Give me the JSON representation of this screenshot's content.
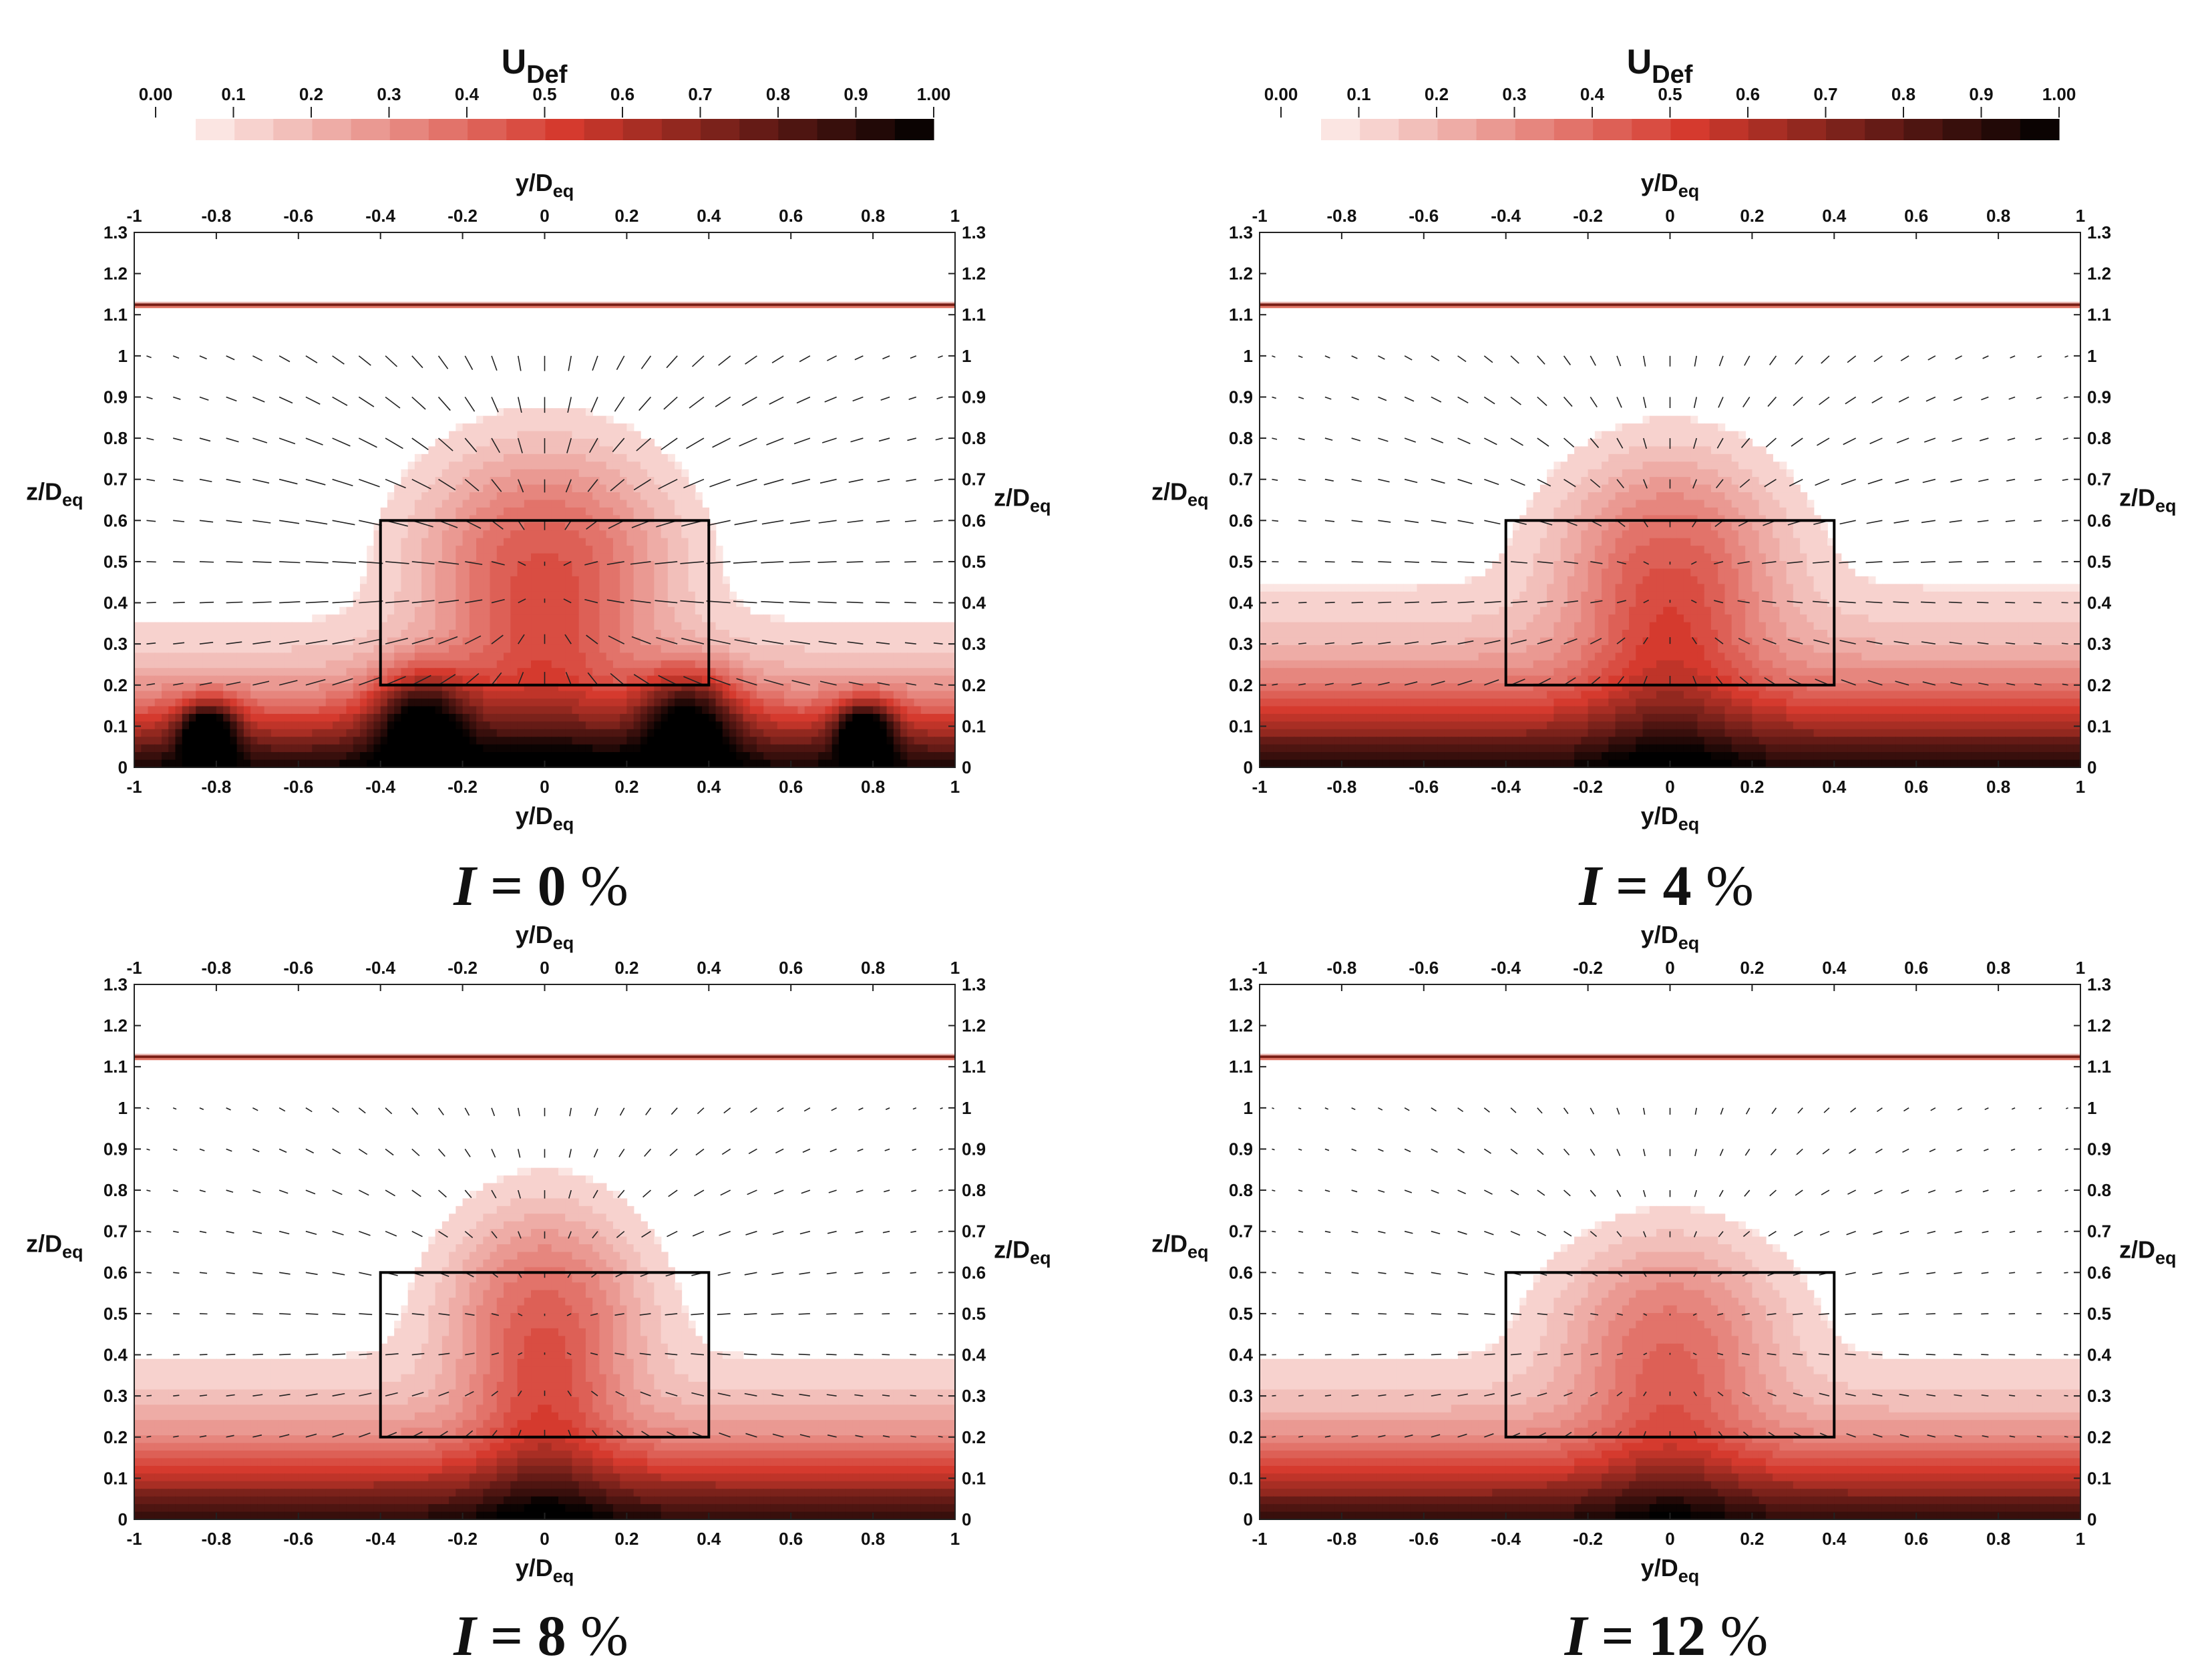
{
  "colorbar": {
    "title_main": "U",
    "title_sub": "Def",
    "ticks": [
      "0.00",
      "0.1",
      "0.2",
      "0.3",
      "0.4",
      "0.5",
      "0.6",
      "0.7",
      "0.8",
      "0.9",
      "1.00"
    ],
    "levels": 19,
    "color_low": "#fdeeec",
    "color_mid": "#d53a2e",
    "color_high": "#000000"
  },
  "axes": {
    "x_title_main": "y/D",
    "x_title_sub": "eq",
    "y_title_main": "z/D",
    "y_title_sub": "eq",
    "x_ticks": [
      "-1",
      "-0.8",
      "-0.6",
      "-0.4",
      "-0.2",
      "0",
      "0.2",
      "0.4",
      "0.6",
      "0.8",
      "1"
    ],
    "x_tick_values": [
      -1,
      -0.8,
      -0.6,
      -0.4,
      -0.2,
      0,
      0.2,
      0.4,
      0.6,
      0.8,
      1
    ],
    "y_ticks": [
      "0",
      "0.1",
      "0.2",
      "0.3",
      "0.4",
      "0.5",
      "0.6",
      "0.7",
      "0.8",
      "0.9",
      "1",
      "1.1",
      "1.2",
      "1.3"
    ],
    "y_tick_values": [
      0,
      0.1,
      0.2,
      0.3,
      0.4,
      0.5,
      0.6,
      0.7,
      0.8,
      0.9,
      1,
      1.1,
      1.2,
      1.3
    ],
    "xlim": [
      -1,
      1
    ],
    "ylim": [
      0,
      1.3
    ]
  },
  "panels": [
    {
      "label_var": "I",
      "label_eq": " = ",
      "label_value": "0",
      "label_pct": " %"
    },
    {
      "label_var": "I",
      "label_eq": " = ",
      "label_value": "4",
      "label_pct": " %"
    },
    {
      "label_var": "I",
      "label_eq": " = ",
      "label_value": "8",
      "label_pct": " %"
    },
    {
      "label_var": "I",
      "label_eq": " = ",
      "label_value": "12",
      "label_pct": " %"
    }
  ],
  "chart_data": {
    "type": "heatmap",
    "variable": "U_Def (velocity deficit) contours with in-plane velocity vectors",
    "x_label": "y/D_eq",
    "y_label": "z/D_eq",
    "xlim": [
      -1,
      1
    ],
    "ylim": [
      0,
      1.3
    ],
    "clim": [
      0,
      1
    ],
    "free_surface_z": 1.125,
    "device_box": {
      "y": [
        -0.4,
        0.4
      ],
      "z": [
        0.2,
        0.6
      ]
    },
    "cases": [
      {
        "turbulence_intensity_pct": 0,
        "wake_plume": {
          "top_z": 0.82,
          "half_width": 0.38,
          "peak_deficit": 0.35
        },
        "bed_layer": {
          "thickness": 0.16,
          "deficit_at_bed": 0.95
        },
        "bed_lobes": [
          {
            "y": -0.82,
            "z": 0.09,
            "deficit": 0.7,
            "radius": 0.07
          },
          {
            "y": 0.78,
            "z": 0.09,
            "deficit": 0.7,
            "radius": 0.07
          },
          {
            "y": -0.3,
            "z": 0.12,
            "deficit": 0.6,
            "radius": 0.12
          },
          {
            "y": 0.35,
            "z": 0.12,
            "deficit": 0.6,
            "radius": 0.12
          }
        ],
        "vector_strength": 1.0
      },
      {
        "turbulence_intensity_pct": 4,
        "wake_plume": {
          "top_z": 0.8,
          "half_width": 0.34,
          "peak_deficit": 0.32
        },
        "bed_layer": {
          "thickness": 0.2,
          "deficit_at_bed": 0.92
        },
        "bed_lobes": [],
        "vector_strength": 0.7
      },
      {
        "turbulence_intensity_pct": 8,
        "wake_plume": {
          "top_z": 0.8,
          "half_width": 0.3,
          "peak_deficit": 0.32
        },
        "bed_layer": {
          "thickness": 0.18,
          "deficit_at_bed": 0.9
        },
        "bed_lobes": [],
        "vector_strength": 0.55
      },
      {
        "turbulence_intensity_pct": 12,
        "wake_plume": {
          "top_z": 0.72,
          "half_width": 0.34,
          "peak_deficit": 0.26
        },
        "bed_layer": {
          "thickness": 0.18,
          "deficit_at_bed": 0.88
        },
        "bed_lobes": [],
        "vector_strength": 0.45
      }
    ]
  }
}
